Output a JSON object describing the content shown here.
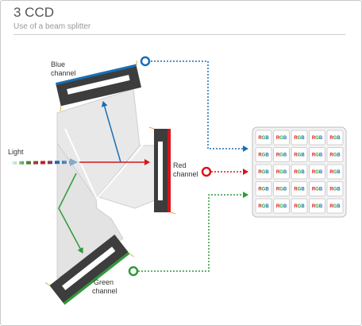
{
  "header": {
    "title": "3 CCD",
    "subtitle": "Use of a beam splitter"
  },
  "labels": {
    "blue_line1": "Blue",
    "blue_line2": "channel",
    "red_line1": "Red",
    "red_line2": "channel",
    "green_line1": "Green",
    "green_line2": "channel",
    "light": "Light"
  },
  "sensor_grid": {
    "rows": 5,
    "cols": 5,
    "cell_letters": [
      "R",
      "G",
      "B"
    ]
  },
  "colors": {
    "blue": "#1a6fb5",
    "red": "#d7141a",
    "green": "#2c9b38",
    "prism": "#e6e6e6",
    "chip": "#3d3d3d",
    "pin": "#e8a838"
  }
}
